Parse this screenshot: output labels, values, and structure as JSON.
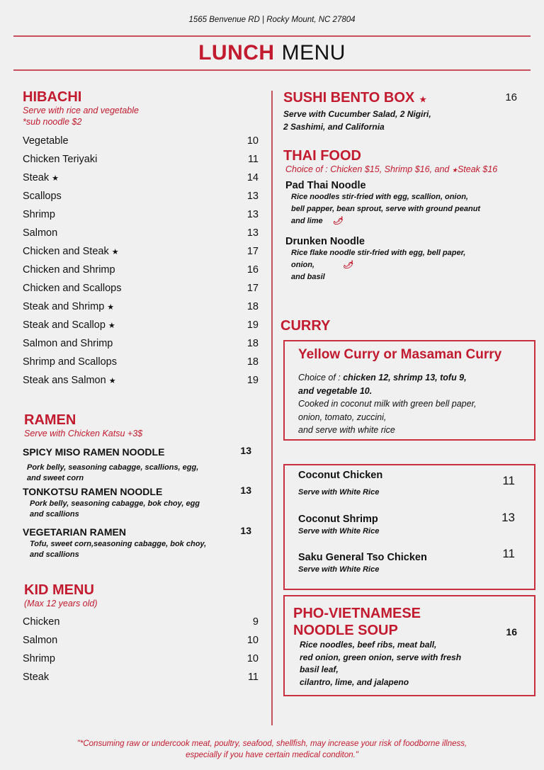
{
  "header": {
    "address": "1565 Benvenue RD | Rocky Mount, NC 27804",
    "title_bold": "LUNCH",
    "title_light": "MENU"
  },
  "accent_color": "#c21a2e",
  "hibachi": {
    "title": "HIBACHI",
    "sub1": "Serve with rice and vegetable",
    "sub2": "*sub noodle $2",
    "items": [
      {
        "name": "Vegetable",
        "price": "10"
      },
      {
        "name": "Chicken Teriyaki",
        "price": "11"
      },
      {
        "name": "Steak",
        "price": "14",
        "star": true
      },
      {
        "name": "Scallops",
        "price": "13"
      },
      {
        "name": "Shrimp",
        "price": "13"
      },
      {
        "name": "Salmon",
        "price": "13"
      },
      {
        "name": "Chicken and Steak",
        "price": "17",
        "star": true
      },
      {
        "name": "Chicken and Shrimp",
        "price": "16"
      },
      {
        "name": "Chicken and Scallops",
        "price": "17"
      },
      {
        "name": "Steak and Shrimp",
        "price": "18",
        "star": true
      },
      {
        "name": "Steak and Scallop",
        "price": "19",
        "star": true
      },
      {
        "name": "Salmon and Shrimp",
        "price": "18"
      },
      {
        "name": "Shrimp and Scallops",
        "price": "18"
      },
      {
        "name": "Steak ans Salmon",
        "price": "19",
        "star": true
      }
    ]
  },
  "ramen": {
    "title": "RAMEN",
    "sub": "Serve with Chicken Katsu +3$",
    "items": [
      {
        "name": "SPICY MISO RAMEN NOODLE",
        "price": "13",
        "desc1": "Pork belly, seasoning cabagge, scallions, egg,",
        "desc2": "and sweet corn"
      },
      {
        "name": "TONKOTSU RAMEN NOODLE",
        "price": "13",
        "desc1": "Pork belly, seasoning cabagge, bok choy, egg",
        "desc2": "and scallions"
      },
      {
        "name": "VEGETARIAN RAMEN",
        "price": "13",
        "desc1": "Tofu, sweet corn,seasoning cabagge, bok choy,",
        "desc2": "and scallions"
      }
    ]
  },
  "kid": {
    "title": "KID MENU",
    "sub": "(Max 12 years old)",
    "items": [
      {
        "name": "Chicken",
        "price": "9"
      },
      {
        "name": "Salmon",
        "price": "10"
      },
      {
        "name": "Shrimp",
        "price": "10"
      },
      {
        "name": "Steak",
        "price": "11"
      }
    ]
  },
  "sushi": {
    "title": "SUSHI BENTO BOX",
    "price": "16",
    "desc1": "Serve with Cucumber Salad, 2 Nigiri,",
    "desc2": "2 Sashimi, and California"
  },
  "thai": {
    "title": "THAI FOOD",
    "sub_a": "Choice of : Chicken $15, Shrimp $16, and ",
    "sub_b": "Steak $16",
    "pad": {
      "name": "Pad Thai Noodle",
      "d1": "Rice noodles stir-fried with egg, scallion, onion,",
      "d2": "bell papper, bean sprout, serve with ground peanut",
      "d3": "and lime"
    },
    "drunken": {
      "name": "Drunken Noodle",
      "d1": "Rice flake noodle stir-fried with egg, bell paper,",
      "d2": "onion,",
      "d3": "and basil"
    }
  },
  "curry": {
    "title": "CURRY",
    "box_title": "Yellow Curry or Masaman Curry",
    "choice_label": "Choice of : ",
    "choice_bold1": "chicken 12, shrimp 13, tofu 9,",
    "choice_bold2": "and vegetable 10.",
    "d1": "Cooked in coconut milk with green bell paper,",
    "d2": "onion, tomato, zuccini,",
    "d3": "and serve with white rice"
  },
  "specials": [
    {
      "name": "Coconut Chicken",
      "desc": "Serve with White Rice",
      "price": "11"
    },
    {
      "name": "Coconut Shrimp",
      "desc": "Serve with White Rice",
      "price": "13"
    },
    {
      "name": "Saku General Tso Chicken",
      "desc": "Serve with White Rice",
      "price": "11"
    }
  ],
  "pho": {
    "title1": "PHO-VIETNAMESE",
    "title2": "NOODLE SOUP",
    "price": "16",
    "d1": "Rice noodles, beef ribs, meat ball,",
    "d2": "red onion, green onion, serve with fresh",
    "d3": "basil leaf,",
    "d4": "cilantro, lime, and jalapeno"
  },
  "footer": {
    "line1": "\"*Consuming raw or undercook meat, poultry, seafood, shellfish, may increase your risk of foodborne illness,",
    "line2": "especially if you have certain medical conditon.\""
  }
}
